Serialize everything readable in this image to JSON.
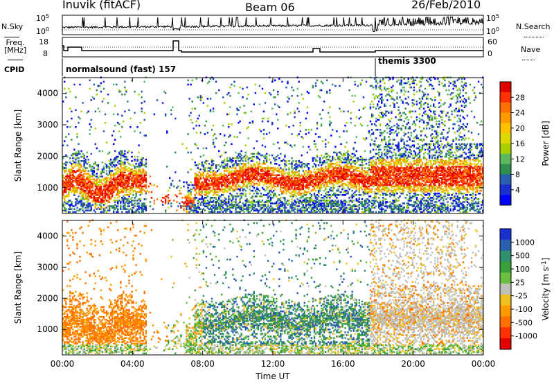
{
  "header": {
    "station": "Inuvik (fitACF)",
    "beam": "Beam 06",
    "date": "26/Feb/2010"
  },
  "side_labels": {
    "nsky": "N.Sky",
    "nsearch": "N.Search",
    "freq_line1": "Freq.",
    "freq_line2": "[MHz]",
    "nave": "Nave",
    "cpid": "CPID"
  },
  "modes": [
    {
      "name": "normalsound (fast)",
      "id": "157",
      "start_hour": 0
    },
    {
      "name": "themis",
      "id": "3300",
      "start_hour": 18.0
    }
  ],
  "chart_data": [
    {
      "type": "line",
      "name": "noise",
      "left_ticks": [
        "10^5",
        "10^0"
      ],
      "right_ticks": [
        "10^5",
        "10^0"
      ]
    },
    {
      "type": "line",
      "name": "frequency-nave",
      "left_ticks": [
        "18",
        "8"
      ],
      "right_ticks": [
        "60",
        "0"
      ]
    },
    {
      "type": "heatmap",
      "name": "power",
      "ylabel": "Slant Range [km]",
      "yticks": [
        1000,
        2000,
        3000,
        4000
      ],
      "ylim": [
        180,
        4500
      ],
      "xlim": [
        0,
        24
      ],
      "colorbar": {
        "label": "Power [dB]",
        "ticks": [
          "28",
          "24",
          "20",
          "16",
          "12",
          "8",
          "4"
        ],
        "colors": [
          "#e00000",
          "#ff3000",
          "#ff7000",
          "#ff9a00",
          "#ffc000",
          "#dcd800",
          "#a8d000",
          "#5cb85c",
          "#2f8f4f",
          "#2a5fb0",
          "#1a2fd0",
          "#0000ff"
        ]
      }
    },
    {
      "type": "heatmap",
      "name": "velocity",
      "ylabel": "Slant Range [km]",
      "yticks": [
        1000,
        2000,
        3000,
        4000
      ],
      "ylim": [
        180,
        4500
      ],
      "xlim": [
        0,
        24
      ],
      "xticks": [
        "00:00",
        "04:00",
        "08:00",
        "12:00",
        "16:00",
        "20:00",
        "00:00"
      ],
      "xlabel": "Time UT",
      "colorbar": {
        "label": "Velocity [m s^-1]",
        "ticks": [
          "1000",
          "500",
          "100",
          "25",
          "-25",
          "-100",
          "-500",
          "-1000"
        ],
        "colors": [
          "#1a2fd0",
          "#2a5fb0",
          "#2f8f6f",
          "#3a9f3a",
          "#6cc040",
          "#c0c0b8",
          "#f0c020",
          "#ff9a00",
          "#ff7000",
          "#ff3000",
          "#e00000"
        ]
      }
    }
  ]
}
